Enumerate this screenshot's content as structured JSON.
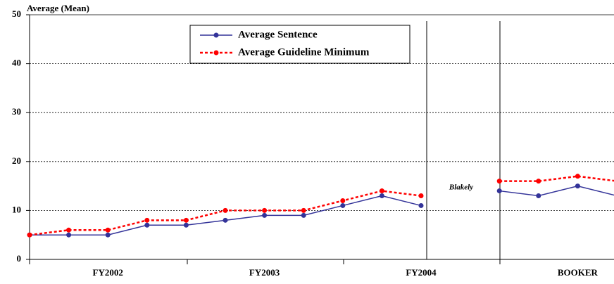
{
  "chart_data": {
    "type": "line",
    "title": "Average (Mean)",
    "categories": [
      null,
      null,
      "FY2002",
      null,
      null,
      null,
      "FY2003",
      null,
      null,
      null,
      "FY2004",
      null,
      null,
      null,
      "BOOKER",
      null
    ],
    "series": [
      {
        "name": "Average Sentence",
        "color": "#333399",
        "style": "solid",
        "values": [
          5,
          5,
          5,
          7,
          7,
          8,
          9,
          9,
          11,
          13,
          11,
          null,
          14,
          13,
          15,
          13
        ]
      },
      {
        "name": "Average Guideline Minimum",
        "color": "#ff0000",
        "style": "dashed",
        "values": [
          5,
          6,
          6,
          8,
          8,
          10,
          10,
          10,
          12,
          14,
          13,
          null,
          16,
          16,
          17,
          16
        ]
      }
    ],
    "ylim": [
      0,
      50
    ],
    "yticks": [
      0,
      10,
      20,
      30,
      40,
      50
    ],
    "grid": true,
    "annotation": "Blakely"
  }
}
